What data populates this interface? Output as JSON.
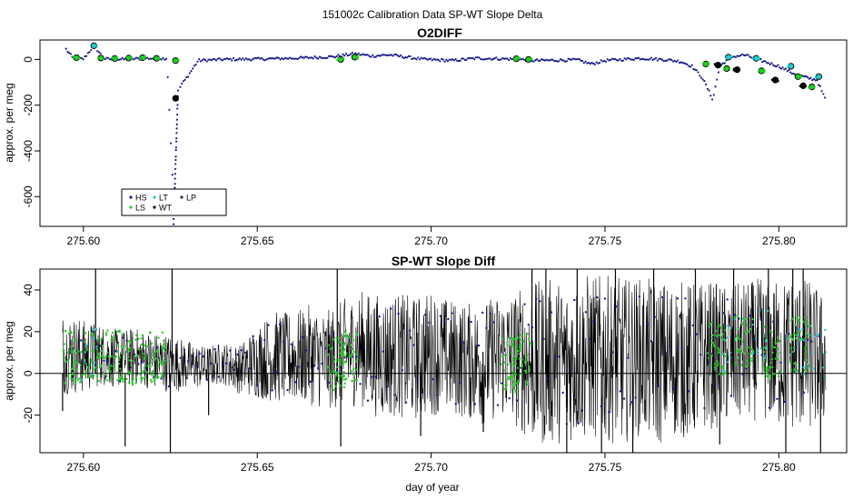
{
  "figure": {
    "title": "151002c   Calibration Data SP-WT Slope Delta",
    "xlabel": "day of year"
  },
  "colors": {
    "HS": "#1a1a8c",
    "LS": "#22cc22",
    "LT": "#22cccc",
    "WT": "#000000",
    "LP": "#2b2b6b",
    "trace": "#000000",
    "marker_edge": "#000000"
  },
  "chart_data": [
    {
      "type": "scatter",
      "title": "O2DIFF",
      "ylabel": "approx. per meg",
      "xlim": [
        275.5875,
        275.8195
      ],
      "ylim": [
        -730,
        85
      ],
      "xticks": [
        275.6,
        275.65,
        275.7,
        275.75,
        275.8
      ],
      "xtick_labels": [
        "275.60",
        "275.65",
        "275.70",
        "275.75",
        "275.80"
      ],
      "yticks": [
        0,
        -200,
        -400,
        -600
      ],
      "ytick_labels": [
        "0",
        "-200",
        "-400",
        "-600"
      ],
      "grid": false,
      "legend": {
        "placement": "bottom-left",
        "entries": [
          {
            "label": "HS",
            "series": "HS"
          },
          {
            "label": "LS",
            "series": "LS"
          },
          {
            "label": "LT",
            "series": "LT"
          },
          {
            "label": "WT",
            "series": "WT"
          },
          {
            "label": "LP",
            "series": "LP"
          }
        ]
      },
      "series": [
        {
          "name": "HS",
          "x": [
            275.595,
            275.597,
            275.6,
            275.603,
            275.606,
            275.609,
            275.612,
            275.615,
            275.618,
            275.621,
            275.624,
            275.6262,
            275.6266,
            275.627,
            275.628,
            275.629,
            275.633,
            275.64,
            275.652,
            275.662,
            275.672,
            275.678,
            275.683,
            275.688,
            275.698,
            275.706,
            275.713,
            275.72,
            275.726,
            275.7295,
            275.742,
            275.746,
            275.75,
            275.755,
            275.76,
            275.763,
            275.768,
            275.772,
            275.775,
            275.778,
            275.781,
            275.783,
            275.786,
            275.79,
            275.795,
            275.8,
            275.804,
            275.808,
            275.811,
            275.8135
          ],
          "y": [
            45,
            5,
            2,
            60,
            3,
            0,
            1,
            3,
            5,
            4,
            5,
            -700,
            -300,
            -180,
            -110,
            -95,
            -5,
            0,
            2,
            6,
            12,
            25,
            15,
            20,
            0,
            -5,
            5,
            3,
            0,
            -5,
            -2,
            -20,
            -5,
            0,
            5,
            3,
            -2,
            -10,
            -30,
            -80,
            -175,
            -30,
            10,
            20,
            -5,
            -30,
            -60,
            -80,
            -90,
            -180
          ]
        },
        {
          "name": "LS",
          "x": [
            275.598,
            275.605,
            275.609,
            275.613,
            275.617,
            275.621,
            275.6265,
            275.674,
            275.678,
            275.7245,
            275.728,
            275.779,
            275.785,
            275.795,
            275.8055,
            275.8095
          ],
          "y": [
            8,
            6,
            4,
            6,
            8,
            5,
            -5,
            0,
            10,
            3,
            0,
            -20,
            -40,
            -50,
            -75,
            -120
          ],
          "markers": true
        },
        {
          "name": "LT",
          "x": [
            275.603,
            275.7855,
            275.7935,
            275.8035,
            275.8115
          ],
          "y": [
            60,
            10,
            5,
            -30,
            -75
          ],
          "markers": true
        },
        {
          "name": "WT",
          "x": [
            275.6265,
            275.7825,
            275.788,
            275.799,
            275.807
          ],
          "y": [
            -170,
            -25,
            -45,
            -90,
            -115
          ],
          "markers": true
        }
      ]
    },
    {
      "type": "line",
      "title": "SP-WT Slope Diff",
      "ylabel": "approx. per meg",
      "xlabel": "day of year",
      "xlim": [
        275.5875,
        275.8195
      ],
      "ylim": [
        -38,
        50
      ],
      "xticks": [
        275.6,
        275.65,
        275.7,
        275.75,
        275.8
      ],
      "xtick_labels": [
        "275.60",
        "275.65",
        "275.70",
        "275.75",
        "275.80"
      ],
      "yticks": [
        40,
        20,
        0,
        -20
      ],
      "ytick_labels": [
        "40",
        "20",
        "0",
        "-20"
      ],
      "hline": 0,
      "grid": false,
      "series": [
        {
          "name": "WT",
          "x": [
            275.594,
            275.6,
            275.605,
            275.61,
            275.615,
            275.62,
            275.625,
            275.63,
            275.635,
            275.64,
            275.645,
            275.65,
            275.655,
            275.66,
            275.665,
            275.67,
            275.675,
            275.68,
            275.685,
            275.69,
            275.695,
            275.7,
            275.705,
            275.71,
            275.715,
            275.72,
            275.725,
            275.73,
            275.735,
            275.74,
            275.745,
            275.75,
            275.755,
            275.76,
            275.765,
            275.77,
            275.775,
            275.78,
            275.785,
            275.79,
            275.795,
            275.8,
            275.805,
            275.81,
            275.8135
          ],
          "y": [
            10,
            8,
            9,
            7,
            8,
            6,
            5,
            4,
            3,
            5,
            2,
            6,
            8,
            7,
            9,
            6,
            10,
            12,
            8,
            9,
            7,
            10,
            8,
            6,
            5,
            9,
            7,
            4,
            6,
            5,
            8,
            7,
            6,
            8,
            5,
            7,
            6,
            9,
            8,
            10,
            12,
            9,
            10,
            8,
            6
          ],
          "band": [
            20,
            18,
            15,
            14,
            14,
            14,
            14,
            12,
            10,
            10,
            12,
            18,
            22,
            22,
            24,
            24,
            26,
            28,
            30,
            30,
            30,
            30,
            28,
            28,
            30,
            30,
            34,
            40,
            40,
            38,
            40,
            40,
            40,
            38,
            40,
            38,
            38,
            36,
            34,
            34,
            34,
            36,
            38,
            36,
            30
          ]
        },
        {
          "name": "HS",
          "x": [
            275.596,
            275.62,
            275.64,
            275.66,
            275.68,
            275.7,
            275.72,
            275.74,
            275.76,
            275.78,
            275.8,
            275.812
          ],
          "y": [
            12,
            4,
            5,
            8,
            9,
            8,
            7,
            6,
            7,
            8,
            9,
            8
          ]
        },
        {
          "name": "LS",
          "x": [
            275.597,
            275.603,
            275.609,
            275.615,
            275.621,
            275.673,
            275.676,
            275.723,
            275.726,
            275.782,
            275.79,
            275.798,
            275.806
          ],
          "y": [
            8,
            7,
            9,
            6,
            8,
            5,
            7,
            4,
            6,
            12,
            15,
            10,
            14
          ]
        },
        {
          "name": "LT",
          "x": [
            275.602,
            275.785,
            275.795,
            275.805,
            275.811
          ],
          "y": [
            10,
            14,
            18,
            12,
            10
          ]
        }
      ],
      "spikes": [
        {
          "x": 275.594,
          "y": -18
        },
        {
          "x": 275.6035,
          "y": 50
        },
        {
          "x": 275.612,
          "y": -35
        },
        {
          "x": 275.625,
          "y": -38
        },
        {
          "x": 275.6255,
          "y": 50
        },
        {
          "x": 275.636,
          "y": -20
        },
        {
          "x": 275.653,
          "y": -10
        },
        {
          "x": 275.673,
          "y": 50
        },
        {
          "x": 275.674,
          "y": -35
        },
        {
          "x": 275.697,
          "y": -30
        },
        {
          "x": 275.715,
          "y": -28
        },
        {
          "x": 275.729,
          "y": 50
        },
        {
          "x": 275.733,
          "y": 50
        },
        {
          "x": 275.739,
          "y": -38
        },
        {
          "x": 275.742,
          "y": 50
        },
        {
          "x": 275.749,
          "y": -38
        },
        {
          "x": 275.753,
          "y": 50
        },
        {
          "x": 275.758,
          "y": -38
        },
        {
          "x": 275.764,
          "y": 50
        },
        {
          "x": 275.776,
          "y": 50
        },
        {
          "x": 275.783,
          "y": -34
        },
        {
          "x": 275.787,
          "y": 50
        },
        {
          "x": 275.797,
          "y": 50
        },
        {
          "x": 275.802,
          "y": -38
        },
        {
          "x": 275.804,
          "y": 50
        },
        {
          "x": 275.807,
          "y": 50
        },
        {
          "x": 275.812,
          "y": -38
        }
      ]
    }
  ]
}
